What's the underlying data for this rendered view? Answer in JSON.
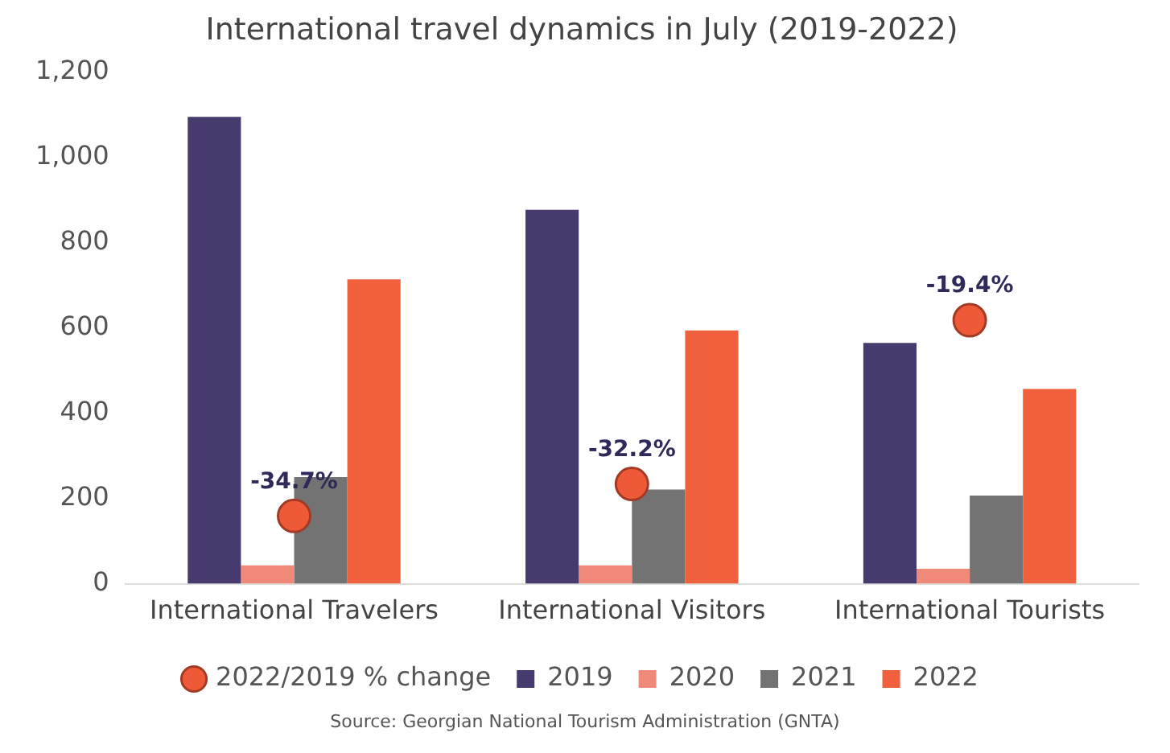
{
  "chart_data": {
    "type": "bar",
    "title": "International travel dynamics in July (2019-2022)",
    "categories": [
      "International Travelers",
      "International Visitors",
      "International Tourists"
    ],
    "series": [
      {
        "name": "2019",
        "color": "#463a6e",
        "values": [
          1095,
          877,
          565
        ]
      },
      {
        "name": "2020",
        "color": "#f08a78",
        "values": [
          43,
          43,
          35
        ]
      },
      {
        "name": "2021",
        "color": "#737373",
        "values": [
          250,
          221,
          207
        ]
      },
      {
        "name": "2022",
        "color": "#f0603c",
        "values": [
          714,
          594,
          457
        ]
      },
      {
        "name": "2022/2019 % change",
        "type": "scatter",
        "axis": "y2",
        "color": "#ee5a38",
        "x": [
          "International Travelers",
          "International Visitors",
          "International Tourists"
        ],
        "values": [
          -34.7,
          -32.2,
          -19.4
        ],
        "value_labels": [
          "-34.7%",
          "-32.2%",
          "-19.4%"
        ]
      }
    ],
    "ylim": [
      0,
      1200
    ],
    "yticks": [
      0,
      200,
      400,
      600,
      800,
      {
        "value": 1000,
        "label": "1,000"
      },
      {
        "value": 1200,
        "label": "1,200"
      }
    ],
    "y2lim": [
      -40,
      0
    ],
    "tick_labels": "y",
    "marker": "circle",
    "grid": false,
    "legend": "bottom",
    "annotations": [
      "Source: Georgian National Tourism Administration (GNTA)"
    ]
  }
}
